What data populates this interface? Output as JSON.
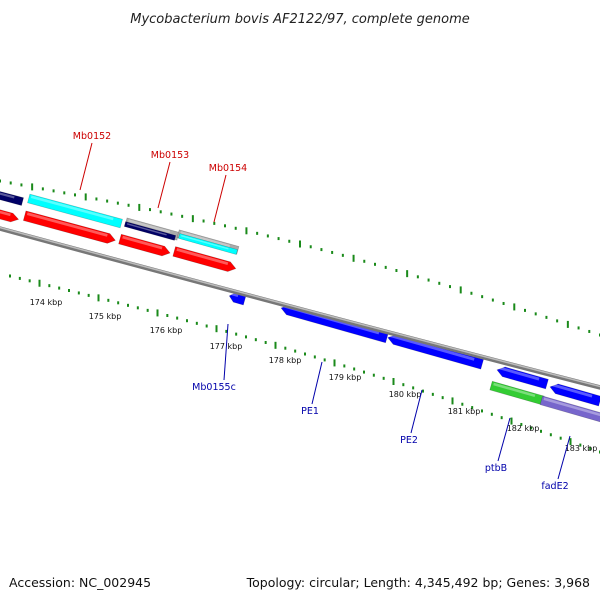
{
  "title": "Mycobacterium bovis AF2122/97, complete genome",
  "footer": {
    "accession": "Accession: NC_002945",
    "summary": "Topology: circular; Length: 4,345,492 bp; Genes: 3,968"
  },
  "colors": {
    "background": "#ffffff",
    "backbone": "#888888",
    "tick": "#1a8a1a",
    "label_forward": "#cc0000",
    "label_reverse": "#0000aa",
    "forward_cds": "#ff0000",
    "forward_gene": "#00ffff",
    "forward_dark": "#000066",
    "forward_gray": "#aaaaaa",
    "reverse_cds": "#0000ff",
    "reverse_green": "#33cc33",
    "reverse_lavender": "#7766cc"
  },
  "scale_labels": [
    "174 kbp",
    "175 kbp",
    "176 kbp",
    "177 kbp",
    "178 kbp",
    "179 kbp",
    "180 kbp",
    "181 kbp",
    "182 kbp",
    "183 kbp"
  ],
  "forward_genes": [
    {
      "name": "Mb0152",
      "color": "label_forward"
    },
    {
      "name": "Mb0153",
      "color": "label_forward"
    },
    {
      "name": "Mb0154",
      "color": "label_forward"
    }
  ],
  "reverse_genes": [
    {
      "name": "Mb0155c",
      "color": "label_reverse"
    },
    {
      "name": "PE1",
      "color": "label_reverse"
    },
    {
      "name": "PE2",
      "color": "label_reverse"
    },
    {
      "name": "ptbB",
      "color": "label_reverse"
    },
    {
      "name": "fadE2",
      "color": "label_reverse"
    }
  ]
}
